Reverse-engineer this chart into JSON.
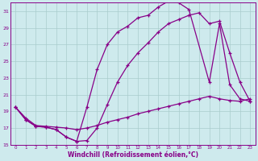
{
  "xlabel": "Windchill (Refroidissement éolien,°C)",
  "bg_color": "#ceeaed",
  "line_color": "#880088",
  "grid_color": "#aacccc",
  "xlim": [
    -0.5,
    23.5
  ],
  "ylim": [
    15,
    32
  ],
  "yticks": [
    15,
    17,
    19,
    21,
    23,
    25,
    27,
    29,
    31
  ],
  "xticks": [
    0,
    1,
    2,
    3,
    4,
    5,
    6,
    7,
    8,
    9,
    10,
    11,
    12,
    13,
    14,
    15,
    16,
    17,
    18,
    19,
    20,
    21,
    22,
    23
  ],
  "curve1_x": [
    0,
    1,
    2,
    3,
    4,
    5,
    6,
    7,
    8,
    9,
    10,
    11,
    12,
    13,
    14,
    15,
    16,
    17,
    19,
    20,
    21,
    22,
    23
  ],
  "curve1_y": [
    19.5,
    18.0,
    17.2,
    17.1,
    16.8,
    15.9,
    15.4,
    19.5,
    24.0,
    27.0,
    28.5,
    29.2,
    30.2,
    30.5,
    31.5,
    32.2,
    32.0,
    31.2,
    22.5,
    29.5,
    22.2,
    20.5,
    20.2
  ],
  "curve2_x": [
    0,
    1,
    2,
    3,
    4,
    5,
    6,
    7,
    8,
    9,
    10,
    11,
    12,
    13,
    14,
    15,
    16,
    17,
    18,
    19,
    20,
    21,
    22,
    23
  ],
  "curve2_y": [
    19.5,
    18.0,
    17.2,
    17.1,
    16.8,
    15.9,
    15.4,
    15.5,
    17.0,
    19.8,
    22.5,
    24.5,
    26.0,
    27.2,
    28.5,
    29.5,
    30.0,
    30.5,
    30.8,
    29.5,
    29.8,
    26.0,
    22.5,
    20.2
  ],
  "curve3_x": [
    0,
    1,
    2,
    3,
    4,
    5,
    6,
    7,
    8,
    9,
    10,
    11,
    12,
    13,
    14,
    15,
    16,
    17,
    18,
    19,
    20,
    21,
    22,
    23
  ],
  "curve3_y": [
    19.5,
    18.2,
    17.3,
    17.2,
    17.1,
    17.0,
    16.8,
    17.0,
    17.3,
    17.7,
    18.0,
    18.3,
    18.7,
    19.0,
    19.3,
    19.6,
    19.9,
    20.2,
    20.5,
    20.8,
    20.5,
    20.3,
    20.2,
    20.5
  ]
}
